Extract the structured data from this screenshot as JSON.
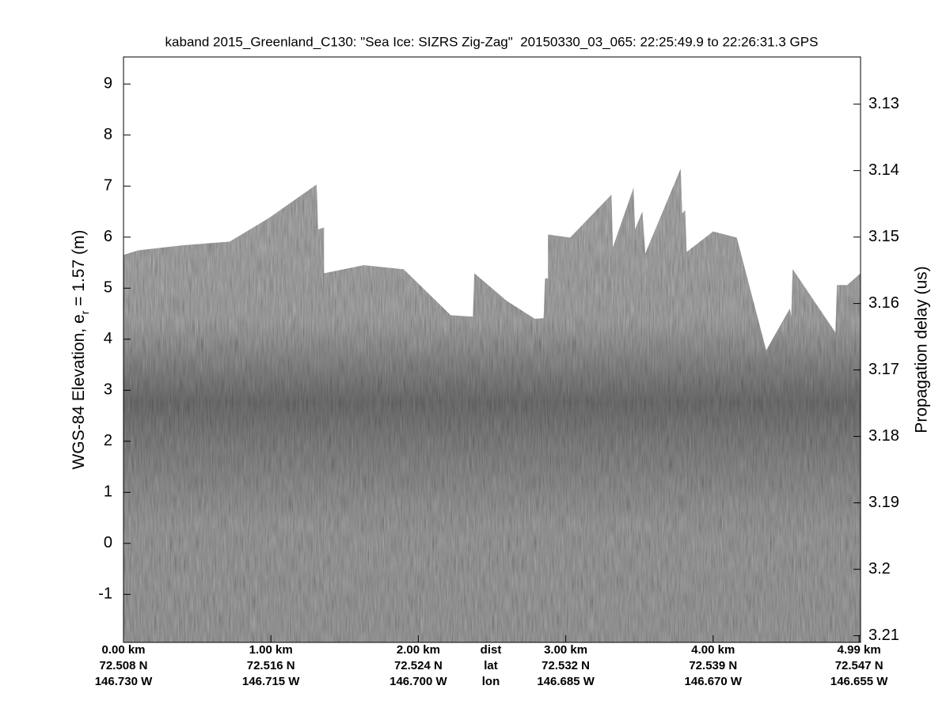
{
  "chart_data": {
    "type": "echogram",
    "title": "kaband 2015_Greenland_C130: \"Sea Ice: SIZRS Zig-Zag\"  20150330_03_065: 22:25:49.9 to 22:26:31.3 GPS",
    "ylabel": [
      "WGS-84 Elevation, e",
      "r",
      " = 1.57 (m)"
    ],
    "y2label": "Propagation delay (us)",
    "ylim": [
      -1.94,
      9.53
    ],
    "yticks": [
      -1,
      0,
      1,
      2,
      3,
      4,
      5,
      6,
      7,
      8,
      9
    ],
    "y2lim": [
      3.211,
      3.1229
    ],
    "y2ticks": [
      3.13,
      3.14,
      3.15,
      3.16,
      3.17,
      3.18,
      3.19,
      3.2,
      3.21
    ],
    "xlim": [
      0,
      5.0
    ],
    "xticks": [
      {
        "value": 0,
        "label": "0.00 km"
      },
      {
        "value": 1,
        "label": "1.00 km"
      },
      {
        "value": 2,
        "label": "2.00 km"
      },
      {
        "value": 3,
        "label": "3.00 km"
      },
      {
        "value": 4,
        "label": "4.00 km"
      },
      {
        "value": 4.99,
        "label": "4.99 km"
      }
    ],
    "lat_labels": [
      "72.508 N",
      "72.516 N",
      "72.524 N",
      "72.532 N",
      "72.539 N",
      "72.547 N"
    ],
    "lon_labels": [
      "146.730 W",
      "146.715 W",
      "146.700 W",
      "146.685 W",
      "146.670 W",
      "146.655 W"
    ],
    "row_labels": [
      "dist",
      "lat",
      "lon"
    ],
    "x": [
      0.0,
      0.1,
      0.4,
      0.72,
      0.99,
      1.31,
      1.32,
      1.36,
      1.36,
      1.63,
      1.9,
      2.22,
      2.37,
      2.38,
      2.6,
      2.79,
      2.85,
      2.86,
      2.88,
      2.88,
      3.03,
      3.31,
      3.32,
      3.46,
      3.47,
      3.52,
      3.54,
      3.78,
      3.79,
      3.81,
      3.82,
      4.0,
      4.16,
      4.36,
      4.52,
      4.53,
      4.54,
      4.83,
      4.84,
      4.91,
      5.0
    ],
    "values": [
      5.65,
      5.74,
      5.84,
      5.91,
      6.38,
      7.03,
      6.15,
      6.19,
      5.29,
      5.45,
      5.37,
      4.47,
      4.44,
      5.29,
      4.75,
      4.4,
      4.41,
      5.19,
      5.19,
      6.05,
      5.99,
      6.83,
      5.8,
      6.97,
      6.15,
      6.5,
      5.68,
      7.34,
      6.46,
      6.53,
      5.71,
      6.11,
      5.99,
      3.78,
      4.6,
      4.44,
      5.37,
      4.13,
      5.06,
      5.06,
      5.29
    ],
    "color": "#7a7a7a"
  }
}
